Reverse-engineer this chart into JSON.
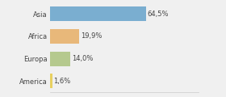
{
  "categories": [
    "Asia",
    "Africa",
    "Europa",
    "America"
  ],
  "values": [
    64.5,
    19.9,
    14.0,
    1.6
  ],
  "labels": [
    "64,5%",
    "19,9%",
    "14,0%",
    "1,6%"
  ],
  "bar_colors": [
    "#7aaed0",
    "#e8b87a",
    "#b5c98e",
    "#e8d060"
  ],
  "background_color": "#f0f0f0",
  "xlim": [
    0,
    100
  ],
  "label_fontsize": 6.0,
  "tick_fontsize": 6.0,
  "bar_height": 0.65
}
